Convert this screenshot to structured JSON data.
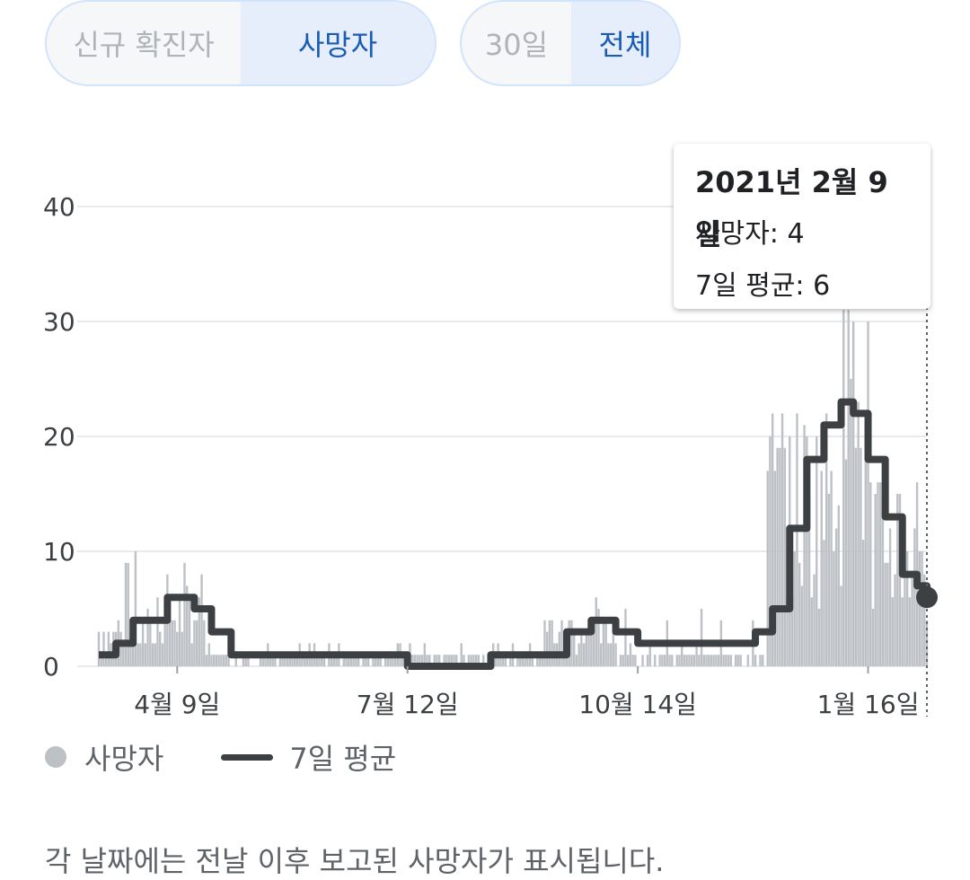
{
  "toggle_metric": {
    "options": [
      "신규 확진자",
      "사망자"
    ],
    "selected": "사망자"
  },
  "toggle_range": {
    "options": [
      "30일",
      "전체"
    ],
    "selected": "전체"
  },
  "tooltip": {
    "date": "2021년 2월 9일",
    "deaths_line": "사망자: 4",
    "avg_line": "7일 평균: 6"
  },
  "legend": {
    "deaths": "사망자",
    "avg": "7일 평균"
  },
  "footnote": "각 날짜에는 전날 이후 보고된 사망자가 표시됩니다.",
  "colors": {
    "bars": "#bdc1c6",
    "avg_line": "#3c4043",
    "accent": "#1a5bb4",
    "grid": "#e8eaed"
  },
  "chart_data": {
    "type": "bar",
    "ylim": [
      0,
      40
    ],
    "yticks": [
      0,
      10,
      20,
      30,
      40
    ],
    "xtick_labels": [
      "4월 9일",
      "7월 12일",
      "10월 14일",
      "1월 16일"
    ],
    "grid": true,
    "legend_position": "bottom-left",
    "highlight": {
      "label": "2021년 2월 9일",
      "deaths": 4,
      "avg": 6
    },
    "series": [
      {
        "name": "사망자",
        "style": "bars",
        "segments": [
          {
            "from": "2020-03-08",
            "to": "2020-03-31",
            "approx": 3,
            "peak": 11
          },
          {
            "from": "2020-04-01",
            "to": "2020-04-20",
            "approx": 5,
            "peak": 9
          },
          {
            "from": "2020-04-21",
            "to": "2020-09-05",
            "approx": 1,
            "peak": 2
          },
          {
            "from": "2020-09-06",
            "to": "2020-10-05",
            "approx": 3,
            "peak": 6
          },
          {
            "from": "2020-10-06",
            "to": "2020-12-05",
            "approx": 1,
            "peak": 5
          },
          {
            "from": "2020-12-06",
            "to": "2020-12-31",
            "approx": 15,
            "peak": 24
          },
          {
            "from": "2021-01-01",
            "to": "2021-01-16",
            "approx": 22,
            "peak": 31
          },
          {
            "from": "2021-01-17",
            "to": "2021-02-09",
            "approx": 12,
            "peak": 16
          }
        ]
      },
      {
        "name": "7일 평균",
        "style": "line",
        "points": [
          {
            "date": "2020-03-08",
            "value": 1
          },
          {
            "date": "2020-03-15",
            "value": 2
          },
          {
            "date": "2020-03-22",
            "value": 4
          },
          {
            "date": "2020-03-29",
            "value": 4
          },
          {
            "date": "2020-04-05",
            "value": 6
          },
          {
            "date": "2020-04-09",
            "value": 6
          },
          {
            "date": "2020-04-16",
            "value": 5
          },
          {
            "date": "2020-04-23",
            "value": 3
          },
          {
            "date": "2020-05-01",
            "value": 1
          },
          {
            "date": "2020-06-15",
            "value": 1
          },
          {
            "date": "2020-07-12",
            "value": 0
          },
          {
            "date": "2020-08-15",
            "value": 1
          },
          {
            "date": "2020-09-01",
            "value": 1
          },
          {
            "date": "2020-09-15",
            "value": 3
          },
          {
            "date": "2020-09-25",
            "value": 4
          },
          {
            "date": "2020-10-05",
            "value": 3
          },
          {
            "date": "2020-10-14",
            "value": 2
          },
          {
            "date": "2020-11-15",
            "value": 2
          },
          {
            "date": "2020-12-01",
            "value": 3
          },
          {
            "date": "2020-12-08",
            "value": 5
          },
          {
            "date": "2020-12-15",
            "value": 12
          },
          {
            "date": "2020-12-22",
            "value": 18
          },
          {
            "date": "2020-12-29",
            "value": 21
          },
          {
            "date": "2021-01-05",
            "value": 23
          },
          {
            "date": "2021-01-10",
            "value": 22
          },
          {
            "date": "2021-01-16",
            "value": 18
          },
          {
            "date": "2021-01-23",
            "value": 13
          },
          {
            "date": "2021-01-30",
            "value": 8
          },
          {
            "date": "2021-02-05",
            "value": 7
          },
          {
            "date": "2021-02-09",
            "value": 6
          }
        ]
      }
    ]
  }
}
